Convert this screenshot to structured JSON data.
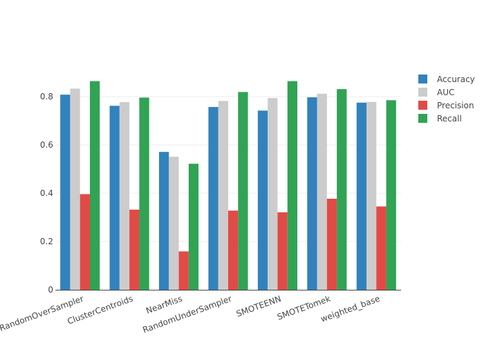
{
  "chart_data": {
    "type": "bar",
    "title": "",
    "xlabel": "",
    "ylabel": "",
    "categories": [
      "RandomOverSampler",
      "ClusterCentroids",
      "NearMiss",
      "RandomUnderSampler",
      "SMOTEENN",
      "SMOTETomek",
      "weighted_base"
    ],
    "ylim": [
      0,
      0.9
    ],
    "yticks": [
      0,
      0.2,
      0.4,
      0.6,
      0.8
    ],
    "ytick_labels": [
      "0",
      "0.2",
      "0.4",
      "0.6",
      "0.8"
    ],
    "grid": true,
    "legend_position": "top-right",
    "series": [
      {
        "name": "Accuracy",
        "color": "#3182bd",
        "values": [
          0.808,
          0.762,
          0.571,
          0.757,
          0.742,
          0.797,
          0.775
        ]
      },
      {
        "name": "AUC",
        "color": "#cccccc",
        "values": [
          0.833,
          0.777,
          0.551,
          0.782,
          0.794,
          0.812,
          0.778
        ]
      },
      {
        "name": "Precision",
        "color": "#e24a46",
        "values": [
          0.396,
          0.332,
          0.159,
          0.328,
          0.321,
          0.377,
          0.345
        ]
      },
      {
        "name": "Recall",
        "color": "#31a354",
        "values": [
          0.864,
          0.796,
          0.522,
          0.819,
          0.864,
          0.831,
          0.785
        ]
      }
    ]
  }
}
